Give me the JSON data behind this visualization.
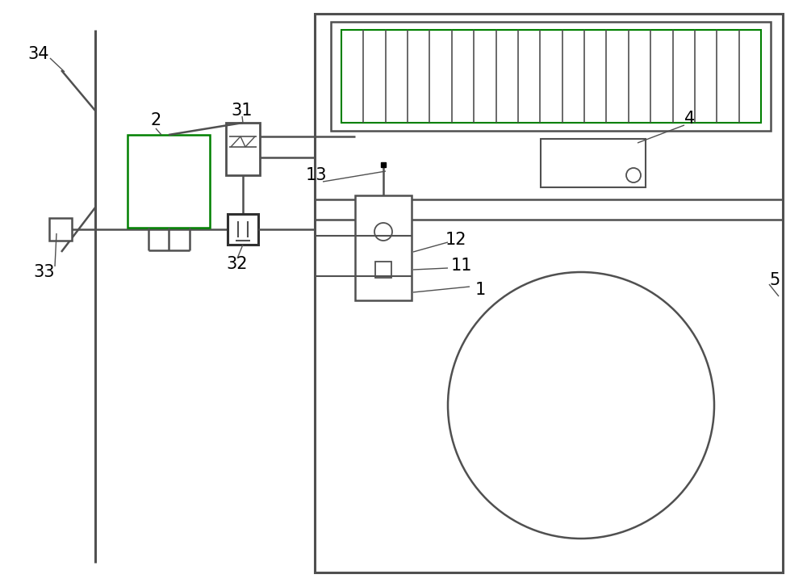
{
  "bg_color": "#ffffff",
  "lc": "#505050",
  "green_color": "#008000",
  "fig_width": 10.0,
  "fig_height": 7.27
}
